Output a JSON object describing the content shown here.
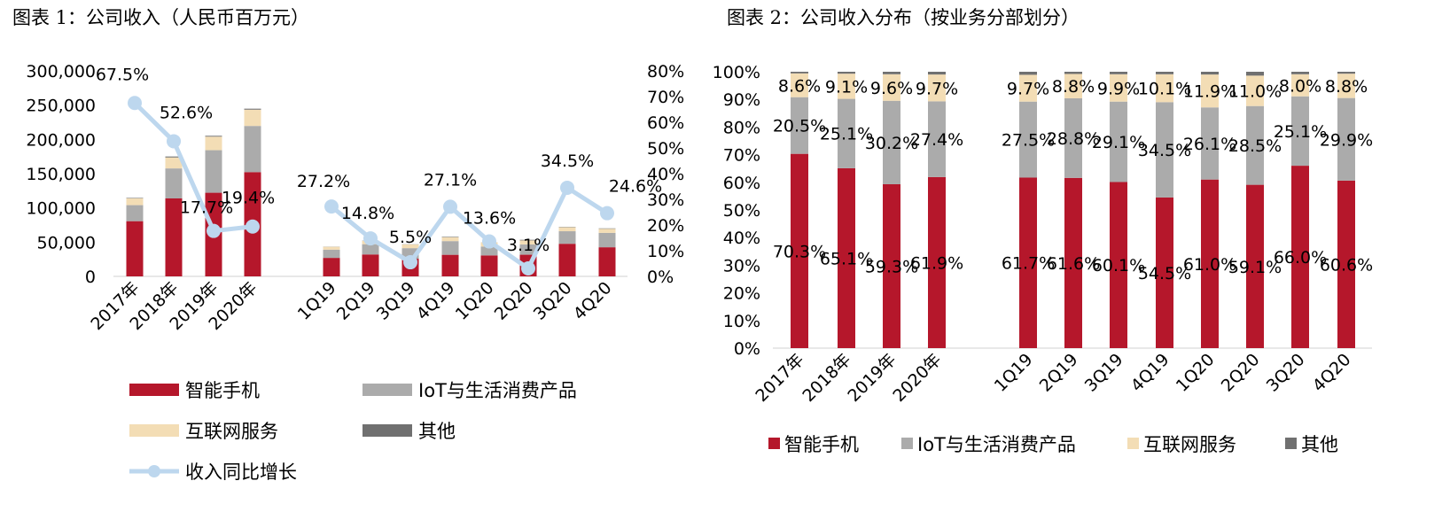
{
  "chart_data": [
    {
      "type": "bar",
      "title": "图表 1：公司收入（人民币百万元）",
      "categories": [
        "2017年",
        "2018年",
        "2019年",
        "2020年",
        "1Q19",
        "2Q19",
        "3Q19",
        "4Q19",
        "1Q20",
        "2Q20",
        "3Q20",
        "4Q20"
      ],
      "stacked": true,
      "series": [
        {
          "name": "智能手机",
          "color": "#B5172B",
          "values": [
            80600,
            113800,
            122100,
            152200,
            27000,
            32000,
            25800,
            31500,
            30600,
            31600,
            47600,
            42500
          ]
        },
        {
          "name": "IoT与生活消费产品",
          "color": "#ABABAB",
          "values": [
            23400,
            43800,
            62100,
            67400,
            12000,
            15000,
            15400,
            20000,
            13000,
            15000,
            18300,
            21000
          ]
        },
        {
          "name": "互联网服务",
          "color": "#F3DDB5",
          "values": [
            9900,
            16000,
            19800,
            23800,
            4200,
            4800,
            5300,
            5700,
            6000,
            5900,
            5800,
            6000
          ]
        },
        {
          "name": "其他",
          "color": "#707070",
          "values": [
            700,
            1400,
            1200,
            1400,
            200,
            300,
            300,
            700,
            100,
            900,
            500,
            600
          ]
        }
      ],
      "line_series": {
        "name": "收入同比增长",
        "color": "#BDD7EE",
        "values": [
          67.5,
          52.6,
          17.7,
          19.4,
          27.2,
          14.8,
          5.5,
          27.1,
          13.6,
          3.1,
          34.5,
          24.6
        ]
      },
      "line_labels": [
        "67.5%",
        "52.6%",
        "17.7%",
        "19.4%",
        "27.2%",
        "14.8%",
        "5.5%",
        "27.1%",
        "13.6%",
        "3.1%",
        "34.5%",
        "24.6%"
      ],
      "y_left": {
        "lim": [
          0,
          300000
        ],
        "ticks": [
          "0",
          "50,000",
          "100,000",
          "150,000",
          "200,000",
          "250,000",
          "300,000"
        ]
      },
      "y_right": {
        "lim": [
          0,
          80
        ],
        "ticks": [
          "0%",
          "10%",
          "20%",
          "30%",
          "40%",
          "50%",
          "60%",
          "70%",
          "80%"
        ]
      },
      "grid": false,
      "legend_position": "bottom"
    },
    {
      "type": "bar",
      "title": "图表 2：公司收入分布（按业务分部划分）",
      "categories": [
        "2017年",
        "2018年",
        "2019年",
        "2020年",
        "1Q19",
        "2Q19",
        "3Q19",
        "4Q19",
        "1Q20",
        "2Q20",
        "3Q20",
        "4Q20"
      ],
      "stacked": true,
      "percent": true,
      "series": [
        {
          "name": "智能手机",
          "color": "#B5172B",
          "values": [
            70.3,
            65.1,
            59.3,
            61.9,
            61.7,
            61.6,
            60.1,
            54.5,
            61.0,
            59.1,
            66.0,
            60.6
          ],
          "labels": [
            "70.3%",
            "65.1%",
            "59.3%",
            "61.9%",
            "61.7%",
            "61.6%",
            "60.1%",
            "54.5%",
            "61.0%",
            "59.1%",
            "66.0%",
            "60.6%"
          ]
        },
        {
          "name": "IoT与生活消费产品",
          "color": "#ABABAB",
          "values": [
            20.5,
            25.1,
            30.2,
            27.4,
            27.5,
            28.8,
            29.1,
            34.5,
            26.1,
            28.5,
            25.1,
            29.9
          ],
          "labels": [
            "20.5%",
            "25.1%",
            "30.2%",
            "27.4%",
            "27.5%",
            "28.8%",
            "29.1%",
            "34.5%",
            "26.1%",
            "28.5%",
            "25.1%",
            "29.9%"
          ]
        },
        {
          "name": "互联网服务",
          "color": "#F3DDB5",
          "values": [
            8.6,
            9.1,
            9.6,
            9.7,
            9.7,
            8.8,
            9.9,
            10.1,
            11.9,
            11.0,
            8.0,
            8.8
          ],
          "labels": [
            "8.6%",
            "9.1%",
            "9.6%",
            "9.7%",
            "9.7%",
            "8.8%",
            "9.9%",
            "10.1%",
            "11.9%",
            "11.0%",
            "8.0%",
            "8.8%"
          ]
        },
        {
          "name": "其他",
          "color": "#707070",
          "values": [
            0.6,
            0.7,
            0.9,
            1.0,
            1.1,
            0.8,
            0.9,
            0.9,
            1.0,
            1.4,
            0.9,
            0.7
          ]
        }
      ],
      "y": {
        "lim": [
          0,
          100
        ],
        "ticks": [
          "0%",
          "10%",
          "20%",
          "30%",
          "40%",
          "50%",
          "60%",
          "70%",
          "80%",
          "90%",
          "100%"
        ]
      },
      "grid": false,
      "legend_position": "bottom"
    }
  ]
}
